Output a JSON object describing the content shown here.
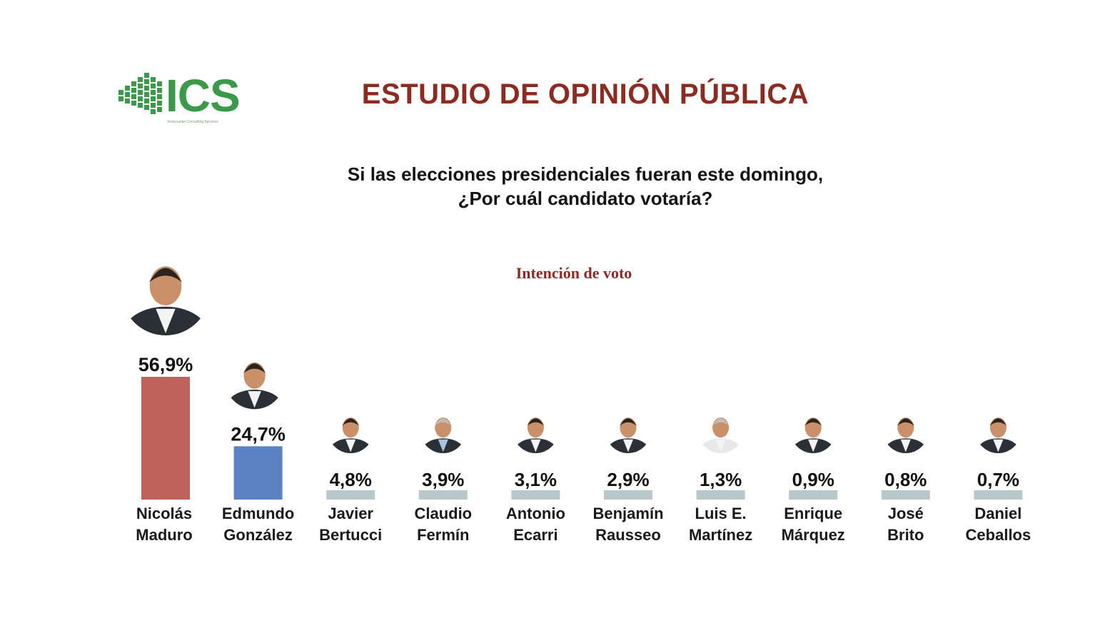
{
  "logo": {
    "text": "ICS",
    "subtitle": "Venezuelan Consulting Services",
    "color": "#3a9a4a",
    "icon": "cube-grid-logo-icon"
  },
  "header": {
    "title": "ESTUDIO DE OPINIÓN PÚBLICA",
    "question_line_1": "Si las elecciones presidenciales fueran este domingo,",
    "question_line_2": "¿Por cuál candidato votaría?"
  },
  "colors": {
    "title": "#8b2b22",
    "maduro_bar": "#c0625c",
    "gonzalez_bar": "#5b82c2",
    "other_bars": "#b7c7cc"
  },
  "chart_data": {
    "type": "bar",
    "title": "Intención de voto",
    "categories": [
      "Nicolás Maduro",
      "Edmundo González",
      "Javier Bertucci",
      "Claudio Fermín",
      "Antonio Ecarri",
      "Benjamín Rausseo",
      "Luis E. Martínez",
      "Enrique Márquez",
      "José Brito",
      "Daniel Ceballos"
    ],
    "category_lines": [
      [
        "Nicolás",
        "Maduro"
      ],
      [
        "Edmundo",
        "González"
      ],
      [
        "Javier",
        "Bertucci"
      ],
      [
        "Claudio",
        "Fermín"
      ],
      [
        "Antonio",
        "Ecarri"
      ],
      [
        "Benjamín",
        "Rausseo"
      ],
      [
        "Luis E.",
        "Martínez"
      ],
      [
        "Enrique",
        "Márquez"
      ],
      [
        "José",
        "Brito"
      ],
      [
        "Daniel",
        "Ceballos"
      ]
    ],
    "values": [
      56.9,
      24.7,
      4.8,
      3.9,
      3.1,
      2.9,
      1.3,
      0.9,
      0.8,
      0.7
    ],
    "value_labels": [
      "56,9%",
      "24,7%",
      "4,8%",
      "3,9%",
      "3,1%",
      "2,9%",
      "1,3%",
      "0,9%",
      "0,8%",
      "0,7%"
    ],
    "bar_colors": [
      "#c0625c",
      "#5b82c2",
      "#b7c7cc",
      "#b7c7cc",
      "#b7c7cc",
      "#b7c7cc",
      "#b7c7cc",
      "#b7c7cc",
      "#b7c7cc",
      "#b7c7cc"
    ],
    "xlabel": "",
    "ylabel": "",
    "ylim": [
      0,
      56.9
    ],
    "grid": false,
    "legend": "none"
  }
}
